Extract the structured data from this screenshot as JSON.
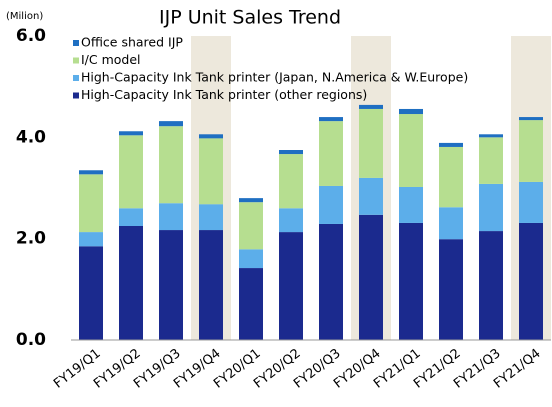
{
  "chart_data": {
    "type": "stacked_bar",
    "title": "IJP Unit Sales Trend",
    "y_unit": "(Milion)",
    "categories": [
      "FY19/Q1",
      "FY19/Q2",
      "FY19/Q3",
      "FY19/Q4",
      "FY20/Q1",
      "FY20/Q2",
      "FY20/Q3",
      "FY20/Q4",
      "FY21/Q1",
      "FY21/Q2",
      "FY21/Q3",
      "FY21/Q4"
    ],
    "series": [
      {
        "name": "High-Capacity Ink Tank printer (other regions)",
        "color": "#1b2a8e",
        "values": [
          1.85,
          2.25,
          2.17,
          2.17,
          1.42,
          2.13,
          2.29,
          2.47,
          2.31,
          1.99,
          2.15,
          2.31
        ]
      },
      {
        "name": "High-Capacity Ink Tank printer (Japan, N.America & W.Europe)",
        "color": "#5caeea",
        "values": [
          0.28,
          0.35,
          0.53,
          0.51,
          0.37,
          0.47,
          0.75,
          0.73,
          0.71,
          0.63,
          0.93,
          0.81
        ]
      },
      {
        "name": "I/C model",
        "color": "#b6de90",
        "values": [
          1.14,
          1.44,
          1.52,
          1.3,
          0.93,
          1.07,
          1.28,
          1.36,
          1.44,
          1.19,
          0.92,
          1.22
        ]
      },
      {
        "name": "Office shared IJP",
        "color": "#1f6fc2",
        "values": [
          0.08,
          0.08,
          0.1,
          0.08,
          0.08,
          0.08,
          0.08,
          0.08,
          0.1,
          0.08,
          0.06,
          0.06
        ]
      }
    ],
    "ylim": [
      0,
      6
    ],
    "yticks": [
      {
        "value": 0,
        "label": "0.0"
      },
      {
        "value": 2,
        "label": "2.0"
      },
      {
        "value": 4,
        "label": "4.0"
      },
      {
        "value": 6,
        "label": "6.0"
      }
    ],
    "highlight": [
      3,
      7,
      11
    ],
    "highlight_color": "#ede8dc",
    "legend": "upper left"
  }
}
